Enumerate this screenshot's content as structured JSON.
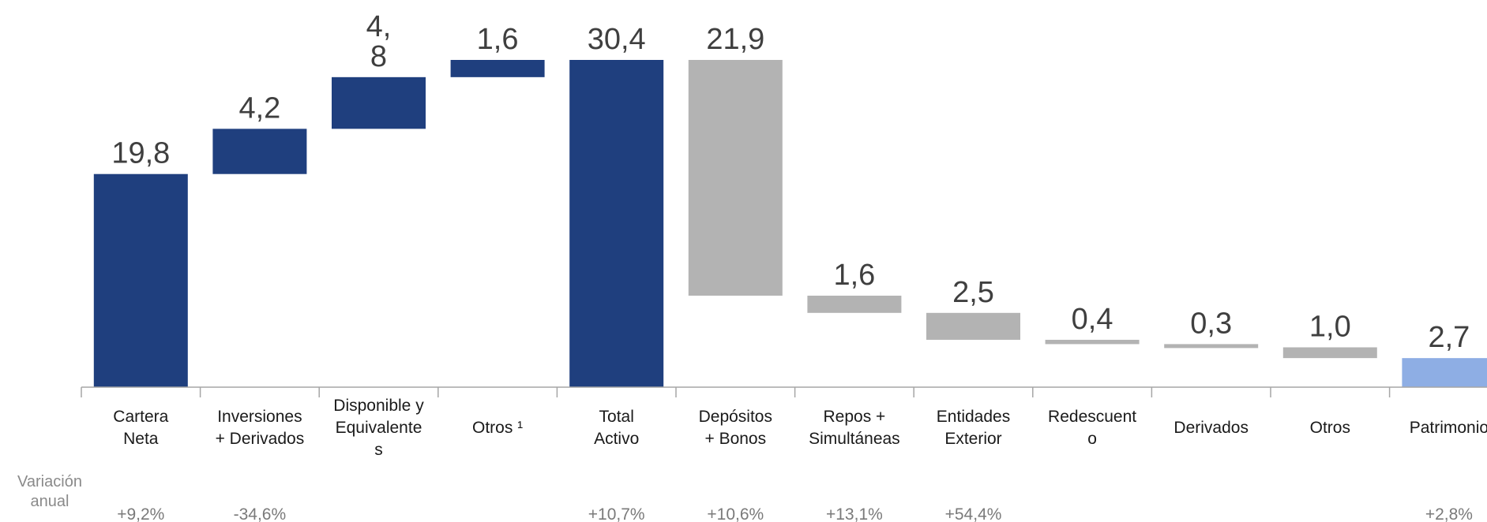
{
  "chart_data": {
    "type": "waterfall",
    "row_label": [
      "Variación",
      "anual"
    ],
    "baseline_axis": true,
    "ylim": [
      0,
      30.4
    ],
    "colors": {
      "assets": "#1f3f7e",
      "liabilities": "#b3b3b3",
      "equity": "#8eaee4",
      "axis": "#a6a6a6"
    },
    "bars": [
      {
        "category": [
          "Cartera",
          "Neta"
        ],
        "start": 0,
        "end": 19.8,
        "label": [
          "19,8"
        ],
        "change": "+9,2%",
        "color_key": "assets"
      },
      {
        "category": [
          "Inversiones",
          "+ Derivados"
        ],
        "start": 19.8,
        "end": 24.0,
        "label": [
          "4,2"
        ],
        "change": "-34,6%",
        "color_key": "assets"
      },
      {
        "category": [
          "Disponible y",
          "Equivalente",
          "s"
        ],
        "start": 24.0,
        "end": 28.8,
        "label": [
          "4,",
          "8"
        ],
        "change": "",
        "color_key": "assets"
      },
      {
        "category": [
          "Otros ¹"
        ],
        "start": 28.8,
        "end": 30.4,
        "label": [
          "1,6"
        ],
        "change": "",
        "color_key": "assets"
      },
      {
        "category": [
          "Total",
          "Activo"
        ],
        "start": 0,
        "end": 30.4,
        "label": [
          "30,4"
        ],
        "change": "+10,7%",
        "color_key": "assets"
      },
      {
        "category": [
          "Depósitos",
          "+ Bonos"
        ],
        "start": 30.4,
        "end": 8.5,
        "label": [
          "21,9"
        ],
        "change": "+10,6%",
        "color_key": "liabilities"
      },
      {
        "category": [
          "Repos +",
          "Simultáneas"
        ],
        "start": 8.5,
        "end": 6.9,
        "label": [
          "1,6"
        ],
        "change": "+13,1%",
        "color_key": "liabilities"
      },
      {
        "category": [
          "Entidades",
          "Exterior"
        ],
        "start": 6.9,
        "end": 4.4,
        "label": [
          "2,5"
        ],
        "change": "+54,4%",
        "color_key": "liabilities"
      },
      {
        "category": [
          "Redescuent",
          "o"
        ],
        "start": 4.4,
        "end": 4.0,
        "label": [
          "0,4"
        ],
        "change": "",
        "color_key": "liabilities"
      },
      {
        "category": [
          "Derivados"
        ],
        "start": 4.0,
        "end": 3.7,
        "label": [
          "0,3"
        ],
        "change": "",
        "color_key": "liabilities"
      },
      {
        "category": [
          "Otros"
        ],
        "start": 3.7,
        "end": 2.7,
        "label": [
          "1,0"
        ],
        "change": "",
        "color_key": "liabilities"
      },
      {
        "category": [
          "Patrimonio"
        ],
        "start": 2.7,
        "end": 0,
        "label": [
          "2,7"
        ],
        "change": "+2,8%",
        "color_key": "equity"
      }
    ]
  }
}
